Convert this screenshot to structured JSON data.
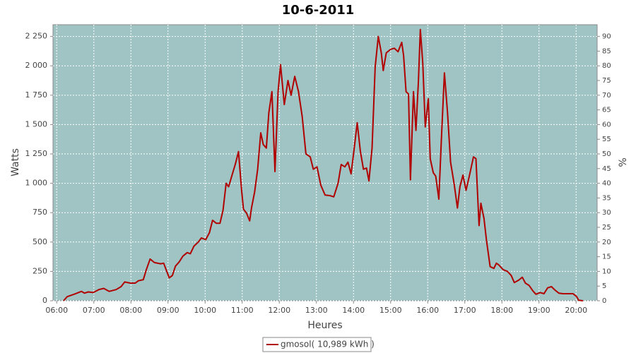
{
  "chart_data": {
    "type": "line",
    "title": "10-6-2011",
    "x_label": "Heures",
    "y_label": "Watts",
    "y2_label": "%",
    "x": [
      "06:11",
      "06:17",
      "06:28",
      "06:40",
      "06:45",
      "06:51",
      "06:59",
      "07:08",
      "07:16",
      "07:25",
      "07:36",
      "07:44",
      "07:50",
      "07:59",
      "08:07",
      "08:12",
      "08:20",
      "08:25",
      "08:31",
      "08:38",
      "08:48",
      "08:53",
      "08:58",
      "09:02",
      "09:07",
      "09:12",
      "09:18",
      "09:24",
      "09:31",
      "09:36",
      "09:42",
      "09:49",
      "09:54",
      "10:01",
      "10:07",
      "10:12",
      "10:18",
      "10:24",
      "10:29",
      "10:34",
      "10:38",
      "10:43",
      "10:49",
      "10:54",
      "10:59",
      "11:02",
      "11:07",
      "11:12",
      "11:15",
      "11:20",
      "11:25",
      "11:30",
      "11:34",
      "11:39",
      "11:43",
      "11:48",
      "11:53",
      "11:58",
      "12:02",
      "12:08",
      "12:14",
      "12:19",
      "12:25",
      "12:31",
      "12:37",
      "12:43",
      "12:50",
      "12:55",
      "13:01",
      "13:07",
      "13:14",
      "13:22",
      "13:28",
      "13:35",
      "13:40",
      "13:46",
      "13:51",
      "13:56",
      "14:00",
      "14:06",
      "14:11",
      "14:16",
      "14:21",
      "14:25",
      "14:30",
      "14:35",
      "14:40",
      "14:45",
      "14:48",
      "14:53",
      "15:00",
      "15:06",
      "15:12",
      "15:18",
      "15:21",
      "15:25",
      "15:29",
      "15:32",
      "15:37",
      "15:41",
      "15:45",
      "15:48",
      "15:52",
      "15:56",
      "16:01",
      "16:04",
      "16:09",
      "16:13",
      "16:18",
      "16:22",
      "16:27",
      "16:32",
      "16:37",
      "16:43",
      "16:48",
      "16:52",
      "16:57",
      "17:02",
      "17:08",
      "17:14",
      "17:18",
      "17:23",
      "17:26",
      "17:31",
      "17:35",
      "17:41",
      "17:47",
      "17:51",
      "17:55",
      "18:02",
      "18:09",
      "18:15",
      "18:20",
      "18:27",
      "18:33",
      "18:38",
      "18:44",
      "18:50",
      "18:55",
      "19:02",
      "19:08",
      "19:14",
      "19:20",
      "19:26",
      "19:32",
      "19:39",
      "19:46",
      "19:55",
      "20:01",
      "20:04",
      "20:11"
    ],
    "series": [
      {
        "name": "gmosol( 10,989 kWh )",
        "color": "#b00000",
        "values": [
          0,
          35,
          55,
          80,
          65,
          75,
          70,
          95,
          105,
          80,
          95,
          120,
          160,
          150,
          150,
          170,
          180,
          265,
          355,
          325,
          315,
          320,
          250,
          195,
          215,
          295,
          330,
          380,
          410,
          400,
          465,
          500,
          535,
          520,
          580,
          685,
          660,
          660,
          770,
          1000,
          970,
          1060,
          1165,
          1270,
          940,
          780,
          745,
          680,
          790,
          925,
          1120,
          1430,
          1330,
          1300,
          1600,
          1780,
          1100,
          1780,
          2010,
          1670,
          1875,
          1750,
          1910,
          1780,
          1570,
          1250,
          1225,
          1120,
          1140,
          985,
          900,
          895,
          885,
          1000,
          1160,
          1140,
          1180,
          1080,
          1250,
          1515,
          1275,
          1120,
          1130,
          1020,
          1300,
          1990,
          2250,
          2110,
          1960,
          2110,
          2140,
          2150,
          2120,
          2200,
          2090,
          1780,
          1760,
          1030,
          1780,
          1450,
          1870,
          2310,
          2020,
          1480,
          1720,
          1210,
          1090,
          1060,
          865,
          1360,
          1940,
          1600,
          1180,
          985,
          790,
          970,
          1070,
          940,
          1080,
          1225,
          1210,
          640,
          830,
          700,
          515,
          290,
          275,
          320,
          305,
          265,
          250,
          215,
          155,
          175,
          200,
          150,
          130,
          85,
          55,
          70,
          60,
          110,
          120,
          90,
          65,
          60,
          60,
          60,
          35,
          5,
          0
        ]
      }
    ],
    "xlim": [
      "05:54",
      "20:34"
    ],
    "xticks": [
      "06:00",
      "07:00",
      "08:00",
      "09:00",
      "10:00",
      "11:00",
      "12:00",
      "13:00",
      "14:00",
      "15:00",
      "16:00",
      "17:00",
      "18:00",
      "19:00",
      "20:00"
    ],
    "ylim": [
      0,
      2350
    ],
    "yticks": [
      0,
      250,
      500,
      750,
      {
        "value": 1000,
        "label": "1 000"
      },
      {
        "value": 1250,
        "label": "1 250"
      },
      {
        "value": 1500,
        "label": "1 500"
      },
      {
        "value": 1750,
        "label": "1 750"
      },
      {
        "value": 2000,
        "label": "2 000"
      },
      {
        "value": 2250,
        "label": "2 250"
      }
    ],
    "y2lim": [
      0,
      94
    ],
    "y2ticks": [
      0,
      5,
      10,
      15,
      20,
      25,
      30,
      35,
      40,
      45,
      50,
      55,
      60,
      65,
      70,
      75,
      80,
      85,
      90
    ],
    "grid": true,
    "plot_background": "#a0c4c4",
    "legend": "bottom"
  }
}
